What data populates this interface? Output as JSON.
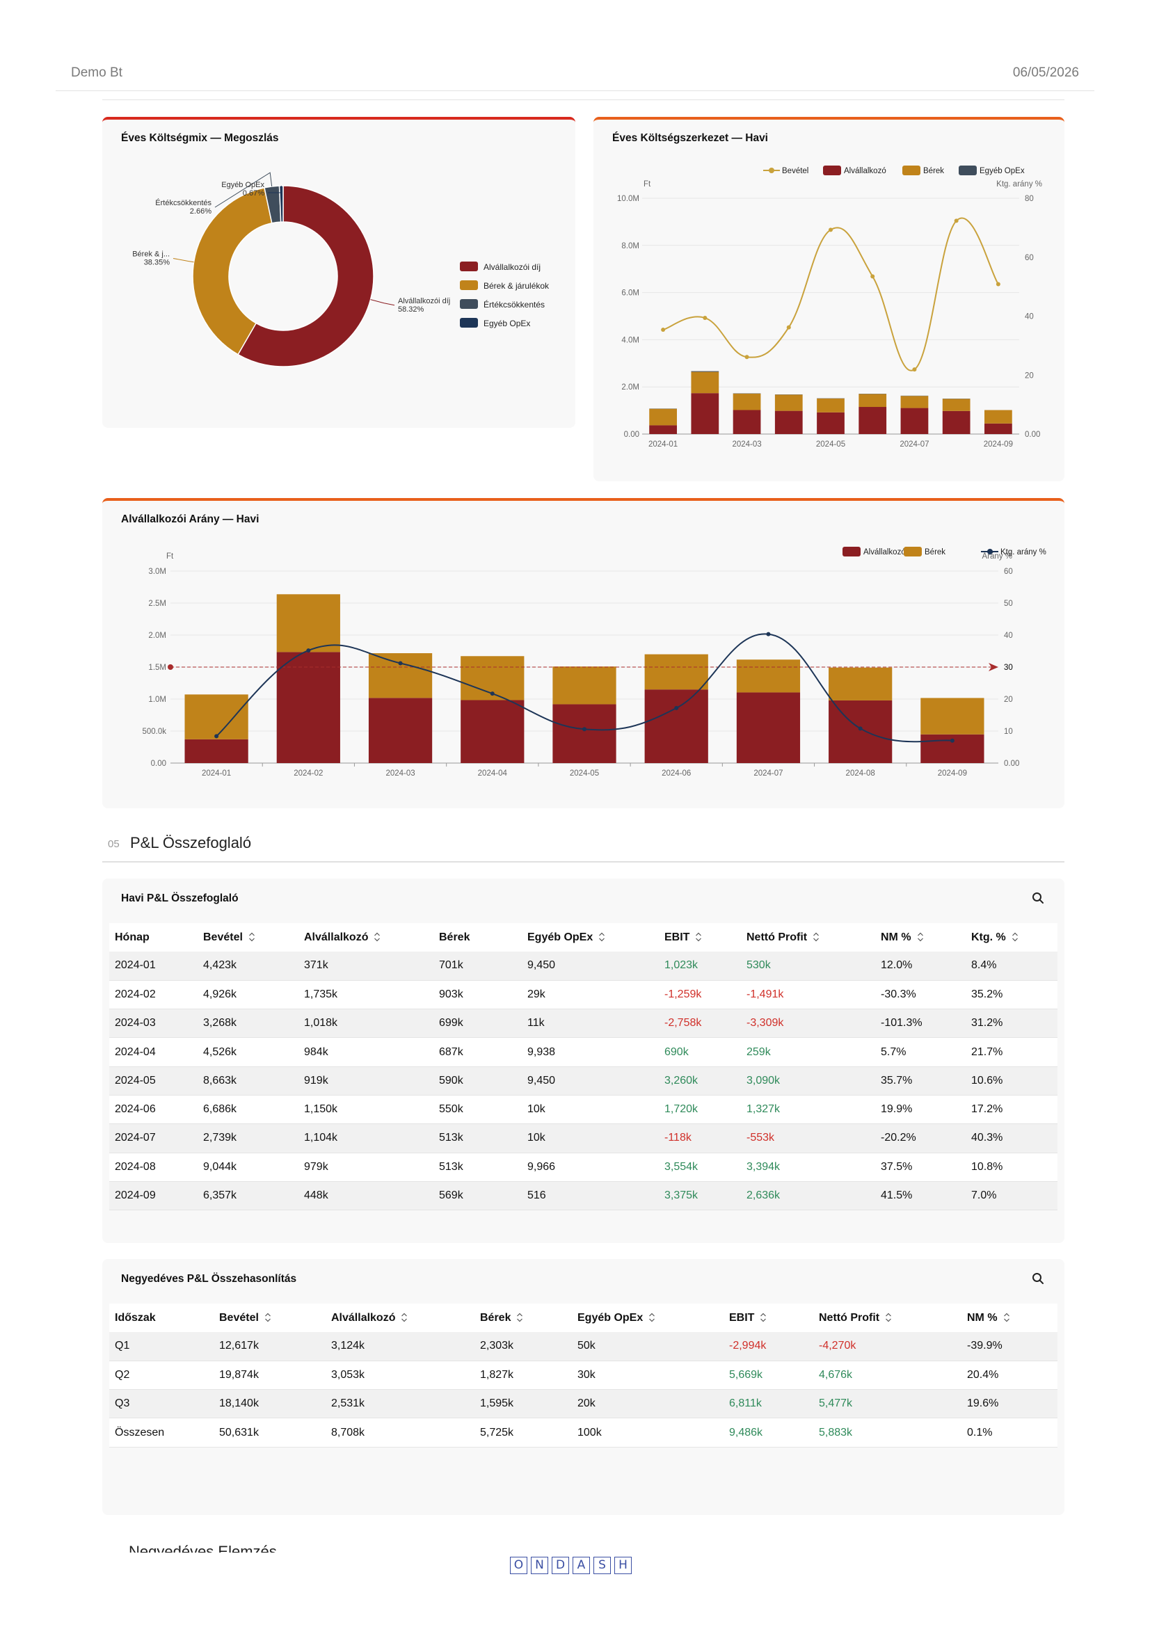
{
  "header": {
    "company": "Demo Bt",
    "date": "06/05/2026"
  },
  "donut_card": {
    "title": "Éves Költségmix — Megoszlás",
    "legend": [
      "Alvállalkozói díj",
      "Bérek & járulékok",
      "Értékcsökkentés",
      "Egyéb OpEx"
    ]
  },
  "monthly_card": {
    "title": "Éves Költségszerkezet — Havi"
  },
  "ratio_card": {
    "title": "Alvállalkozói Arány — Havi"
  },
  "section": {
    "number": "05",
    "title": "P&L Összefoglaló"
  },
  "colors": {
    "red": "#8b1e22",
    "gold": "#c0831a",
    "slate": "#3f4d5c",
    "navy": "#1d3557",
    "line_gold": "#c9a23c",
    "line_navy": "#1d3557"
  },
  "chart_data": [
    {
      "type": "pie",
      "title": "Éves Költségmix — Megoszlás",
      "labels": [
        "Alvállalkozói díj",
        "Bérek & járulékok",
        "Értékcsökkentés",
        "Egyéb OpEx"
      ],
      "callout_labels": [
        "Alvállalkozói díj",
        "Bérek & j...",
        "Értékcsökkentés",
        "Egyéb OpEx"
      ],
      "percent_labels": [
        "58.32%",
        "38.35%",
        "2.66%",
        "0.67%"
      ],
      "values": [
        58.32,
        38.35,
        2.66,
        0.67
      ],
      "legend_position": "right"
    },
    {
      "type": "bar",
      "title": "Éves Költségszerkezet — Havi",
      "stacked": true,
      "categories": [
        "2024-01",
        "2024-02",
        "2024-03",
        "2024-04",
        "2024-05",
        "2024-06",
        "2024-07",
        "2024-08",
        "2024-09"
      ],
      "x_tick_labels": [
        "2024-01",
        "2024-03",
        "2024-05",
        "2024-07",
        "2024-09"
      ],
      "legend": [
        "Bevétel",
        "Alvállalkozó",
        "Bérek",
        "Egyéb OpEx"
      ],
      "ylabel": "Ft",
      "y2label": "Ktg. arány %",
      "y_tick_labels": [
        "0.00",
        "2.0M",
        "4.0M",
        "6.0M",
        "8.0M",
        "10.0M"
      ],
      "y2_tick_labels": [
        "0.00",
        "20",
        "40",
        "60",
        "80"
      ],
      "ylim": [
        0,
        10000000
      ],
      "y2lim": [
        0,
        80
      ],
      "series": [
        {
          "name": "Bevétel",
          "kind": "line",
          "values": [
            4423000,
            4926000,
            3268000,
            4526000,
            8663000,
            6686000,
            2739000,
            9044000,
            6357000
          ]
        },
        {
          "name": "Alvállalkozó",
          "kind": "bar",
          "values": [
            371000,
            1735000,
            1018000,
            984000,
            919000,
            1150000,
            1104000,
            979000,
            448000
          ]
        },
        {
          "name": "Bérek",
          "kind": "bar",
          "values": [
            701000,
            903000,
            699000,
            687000,
            590000,
            550000,
            513000,
            513000,
            569000
          ]
        },
        {
          "name": "Egyéb OpEx",
          "kind": "bar",
          "values": [
            9450,
            29000,
            11000,
            9938,
            9450,
            10000,
            10000,
            9966,
            516
          ]
        }
      ]
    },
    {
      "type": "bar",
      "title": "Alvállalkozói Arány — Havi",
      "stacked": true,
      "categories": [
        "2024-01",
        "2024-02",
        "2024-03",
        "2024-04",
        "2024-05",
        "2024-06",
        "2024-07",
        "2024-08",
        "2024-09"
      ],
      "legend": [
        "Alvállalkozó",
        "Bérek",
        "Ktg. arány %"
      ],
      "ylabel": "Ft",
      "y2label": "Arány %",
      "y_tick_labels": [
        "0.00",
        "500.0k",
        "1.0M",
        "1.5M",
        "2.0M",
        "2.5M",
        "3.0M"
      ],
      "y2_tick_labels": [
        "0.00",
        "10",
        "20",
        "30",
        "40",
        "50",
        "60"
      ],
      "ylim": [
        0,
        3000000
      ],
      "y2lim": [
        0,
        60
      ],
      "reference_line": {
        "value": 30,
        "axis": "y2",
        "label": "30"
      },
      "series": [
        {
          "name": "Alvállalkozó",
          "kind": "bar",
          "values": [
            371000,
            1735000,
            1018000,
            984000,
            919000,
            1150000,
            1104000,
            979000,
            448000
          ]
        },
        {
          "name": "Bérek",
          "kind": "bar",
          "values": [
            701000,
            903000,
            699000,
            687000,
            590000,
            550000,
            513000,
            513000,
            569000
          ]
        },
        {
          "name": "Ktg. arány %",
          "kind": "line",
          "values": [
            8.4,
            35.2,
            31.2,
            21.7,
            10.6,
            17.2,
            40.3,
            10.8,
            7.0
          ]
        }
      ]
    }
  ],
  "monthly_table": {
    "title": "Havi P&L Összefoglaló",
    "columns": [
      "Hónap",
      "Bevétel",
      "Alvállalkozó",
      "Bérek",
      "Egyéb OpEx",
      "EBIT",
      "Nettó Profit",
      "NM %",
      "Ktg. %"
    ],
    "sortable": [
      false,
      true,
      true,
      false,
      true,
      true,
      true,
      true,
      true
    ],
    "rows": [
      [
        "2024-01",
        "4,423k",
        "371k",
        "701k",
        "9,450",
        "1,023k",
        "530k",
        "12.0%",
        "8.4%"
      ],
      [
        "2024-02",
        "4,926k",
        "1,735k",
        "903k",
        "29k",
        "-1,259k",
        "-1,491k",
        "-30.3%",
        "35.2%"
      ],
      [
        "2024-03",
        "3,268k",
        "1,018k",
        "699k",
        "11k",
        "-2,758k",
        "-3,309k",
        "-101.3%",
        "31.2%"
      ],
      [
        "2024-04",
        "4,526k",
        "984k",
        "687k",
        "9,938",
        "690k",
        "259k",
        "5.7%",
        "21.7%"
      ],
      [
        "2024-05",
        "8,663k",
        "919k",
        "590k",
        "9,450",
        "3,260k",
        "3,090k",
        "35.7%",
        "10.6%"
      ],
      [
        "2024-06",
        "6,686k",
        "1,150k",
        "550k",
        "10k",
        "1,720k",
        "1,327k",
        "19.9%",
        "17.2%"
      ],
      [
        "2024-07",
        "2,739k",
        "1,104k",
        "513k",
        "10k",
        "-118k",
        "-553k",
        "-20.2%",
        "40.3%"
      ],
      [
        "2024-08",
        "9,044k",
        "979k",
        "513k",
        "9,966",
        "3,554k",
        "3,394k",
        "37.5%",
        "10.8%"
      ],
      [
        "2024-09",
        "6,357k",
        "448k",
        "569k",
        "516",
        "3,375k",
        "2,636k",
        "41.5%",
        "7.0%"
      ]
    ]
  },
  "quarterly_table": {
    "title": "Negyedéves P&L Összehasonlítás",
    "columns": [
      "Időszak",
      "Bevétel",
      "Alvállalkozó",
      "Bérek",
      "Egyéb OpEx",
      "EBIT",
      "Nettó Profit",
      "NM %"
    ],
    "sortable": [
      false,
      true,
      true,
      true,
      true,
      true,
      true,
      true
    ],
    "rows": [
      [
        "Q1",
        "12,617k",
        "3,124k",
        "2,303k",
        "50k",
        "-2,994k",
        "-4,270k",
        "-39.9%"
      ],
      [
        "Q2",
        "19,874k",
        "3,053k",
        "1,827k",
        "30k",
        "5,669k",
        "4,676k",
        "20.4%"
      ],
      [
        "Q3",
        "18,140k",
        "2,531k",
        "1,595k",
        "20k",
        "6,811k",
        "5,477k",
        "19.6%"
      ],
      [
        "Összesen",
        "50,631k",
        "8,708k",
        "5,725k",
        "100k",
        "9,486k",
        "5,883k",
        "0.1%"
      ]
    ]
  },
  "footer": {
    "next_section_cut": "Negyedéves Elemzés",
    "logo_letters": [
      "O",
      "N",
      "D",
      "A",
      "S",
      "H"
    ]
  }
}
